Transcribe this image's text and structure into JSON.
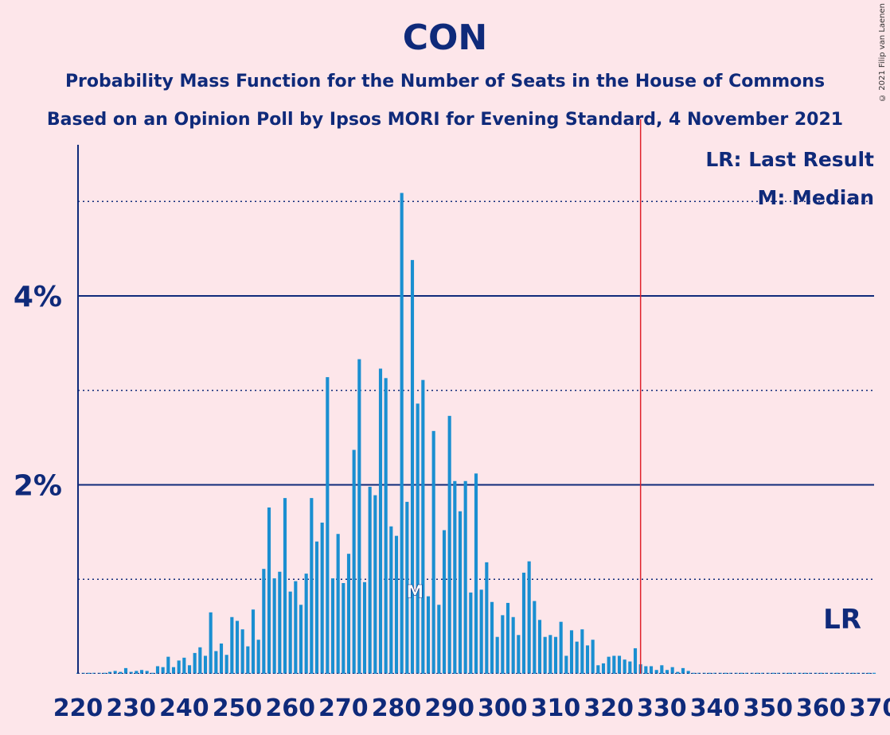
{
  "title": "CON",
  "subtitle": "Probability Mass Function for the Number of Seats in the House of Commons",
  "subtitle2": "Based on an Opinion Poll by Ipsos MORI for Evening Standard, 4 November 2021",
  "copyright": "© 2021 Filip van Laenen",
  "legend": {
    "lr": "LR: Last Result",
    "median": "M: Median"
  },
  "colors": {
    "bar": "#1a8fd1",
    "axis": "#0f2a7a",
    "last_result": "#e0202a",
    "background": "#fde6ea"
  },
  "chart_data": {
    "type": "bar",
    "x_start": 220,
    "values": [
      0.01,
      0.01,
      0.01,
      0.01,
      0.01,
      0.01,
      0.02,
      0.03,
      0.02,
      0.06,
      0.02,
      0.03,
      0.04,
      0.03,
      0.01,
      0.08,
      0.07,
      0.18,
      0.07,
      0.14,
      0.17,
      0.09,
      0.22,
      0.28,
      0.19,
      0.65,
      0.24,
      0.32,
      0.2,
      0.6,
      0.56,
      0.47,
      0.29,
      0.68,
      0.36,
      1.11,
      1.76,
      1.01,
      1.08,
      1.86,
      0.87,
      0.98,
      0.73,
      1.06,
      1.86,
      1.4,
      1.6,
      3.14,
      1.01,
      1.48,
      0.96,
      1.27,
      2.37,
      3.33,
      0.97,
      1.98,
      1.89,
      3.23,
      3.13,
      1.56,
      1.46,
      5.09,
      1.82,
      4.38,
      2.86,
      3.11,
      0.82,
      2.57,
      0.73,
      1.52,
      2.73,
      2.04,
      1.72,
      2.04,
      0.86,
      2.12,
      0.89,
      1.18,
      0.76,
      0.39,
      0.62,
      0.75,
      0.6,
      0.41,
      1.07,
      1.19,
      0.77,
      0.57,
      0.39,
      0.41,
      0.39,
      0.55,
      0.19,
      0.46,
      0.34,
      0.47,
      0.3,
      0.36,
      0.09,
      0.11,
      0.18,
      0.19,
      0.19,
      0.15,
      0.13,
      0.27,
      0.1,
      0.08,
      0.08,
      0.04,
      0.09,
      0.04,
      0.07,
      0.02,
      0.06,
      0.03,
      0.01,
      0.01,
      0.01,
      0.01,
      0.01,
      0.01,
      0.01,
      0.01,
      0.01,
      0.01,
      0.01,
      0.01,
      0.01,
      0.01,
      0.01,
      0.01,
      0.01,
      0.01,
      0.01,
      0.01,
      0.01,
      0.01,
      0.01,
      0.01,
      0.01,
      0.01,
      0.01,
      0.01,
      0.01,
      0.01,
      0.01,
      0.01,
      0.01,
      0.01,
      0.01
    ],
    "xlim": [
      220,
      370
    ],
    "ylim": [
      0,
      5.6
    ],
    "x_ticks": [
      "220",
      "230",
      "240",
      "250",
      "260",
      "270",
      "280",
      "290",
      "300",
      "310",
      "320",
      "330",
      "340",
      "350",
      "360",
      "370"
    ],
    "y_ticks": [
      {
        "value": 2,
        "label": "2%"
      },
      {
        "value": 4,
        "label": "4%"
      }
    ],
    "dotted_gridlines": [
      1,
      3,
      5
    ],
    "last_result": 326,
    "last_result_label": "LR",
    "median": 282,
    "median_label": "M"
  }
}
